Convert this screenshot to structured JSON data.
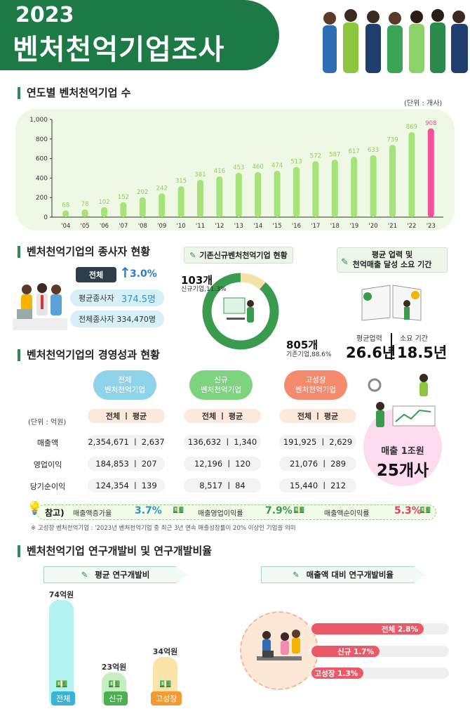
{
  "header": {
    "year": "2023",
    "title": "벤처천억기업조사"
  },
  "yearly": {
    "section_title": "연도별 벤처천억기업 수",
    "unit": "(단위 : 개사)",
    "chart_data": {
      "type": "bar",
      "categories": [
        "'04",
        "'05",
        "'06",
        "'07",
        "'08",
        "'09",
        "'10",
        "'11",
        "'12",
        "'13",
        "'14",
        "'15",
        "'16",
        "'17",
        "'18",
        "'19",
        "'20",
        "'21",
        "'22",
        "'23"
      ],
      "values": [
        68,
        78,
        102,
        152,
        202,
        242,
        315,
        381,
        416,
        453,
        460,
        474,
        513,
        572,
        587,
        617,
        633,
        739,
        869,
        908
      ],
      "yticks": [
        "0",
        "200",
        "400",
        "600",
        "800",
        "1,000"
      ],
      "ylim": [
        0,
        1000
      ],
      "colors": {
        "bar": "#a6e47a",
        "highlight": "#f2529b",
        "label": "#8fcf5a"
      }
    }
  },
  "employees": {
    "section_title": "벤처천억기업의 종사자 현황",
    "badge": "전체",
    "growth": "3.0%",
    "avg_label": "평균종사자",
    "avg_value": "374.5명",
    "total_label": "전체종사자",
    "total_value": "334,470명"
  },
  "new_vs_existing": {
    "title": "기존신규벤처천억기업 현황",
    "chart_data": {
      "type": "pie",
      "categories": [
        "신규기업",
        "기존기업"
      ],
      "values": [
        11.3,
        88.6
      ],
      "colors": [
        "#f4e3a8",
        "#3a9b4f"
      ]
    },
    "new_count": "103개",
    "new_label": "신규기업,11.3%",
    "old_count": "805개",
    "old_label": "기존기업,88.6%"
  },
  "business_age": {
    "title_line1": "평균 업력 및",
    "title_line2": "천억매출 달성 소요 기간",
    "avg_age_label": "평균업력",
    "avg_age_value": "26.6년",
    "duration_label": "소요 기간",
    "duration_value": "18.5년"
  },
  "performance": {
    "section_title": "벤처천억기업의 경영성과 현황",
    "unit": "(단위 : 억원)",
    "groups": [
      "전체\n벤처천억기업",
      "신규\n벤처천억기업",
      "고성장\n벤처천억기업"
    ],
    "group_colors": [
      "#8fd3e8",
      "#7dd37f",
      "#f48a6e"
    ],
    "header": "전체 ㅣ 평균",
    "rows": [
      {
        "label": "매출액",
        "values": [
          "2,354,671 ㅣ 2,637",
          "136,632 ㅣ 1,340",
          "191,925 ㅣ 2,629"
        ]
      },
      {
        "label": "영업이익",
        "values": [
          "184,853 ㅣ 207",
          "12,196 ㅣ 120",
          "21,076 ㅣ 289"
        ]
      },
      {
        "label": "당기순이익",
        "values": [
          "124,354 ㅣ 139",
          "8,517 ㅣ 84",
          "15,440 ㅣ 212"
        ]
      }
    ],
    "trillion_label": "매출 1조원",
    "trillion_value": "25개사"
  },
  "reference": {
    "label": "참고)",
    "items": [
      {
        "name": "매출액증가율",
        "value": "3.7%"
      },
      {
        "name": "매출영업이익률",
        "value": "7.9%"
      },
      {
        "name": "매출액순이익률",
        "value": "5.3%"
      }
    ],
    "footnote": "※ 고성장 벤처천억기업 : '2023년 벤처천억기업 중 최근 3년 연속 매출성장률이 20% 이상인 기업을 의미"
  },
  "rnd": {
    "section_title": "벤처천억기업 연구개발비 및 연구개발비율",
    "avg_title": "평균 연구개발비",
    "ratio_title": "매출액 대비 연구개발비율",
    "chart_data": {
      "type": "bar",
      "categories": [
        "전체",
        "신규",
        "고성장"
      ],
      "values": [
        74,
        23,
        34
      ],
      "value_labels": [
        "74억원",
        "23억원",
        "34억원"
      ],
      "colors": [
        "#b2f3f0",
        "#c5efc0",
        "#fbe4a9"
      ],
      "label_colors": [
        "#39b3d6",
        "#4caf50",
        "#f59a32"
      ]
    },
    "ratio_chart_data": {
      "type": "bar",
      "categories": [
        "전체",
        "신규",
        "고성장"
      ],
      "values": [
        2.8,
        1.7,
        1.3
      ],
      "labels": [
        "전체  2.8%",
        "신규  1.7%",
        "고성장 1.3%"
      ]
    }
  }
}
